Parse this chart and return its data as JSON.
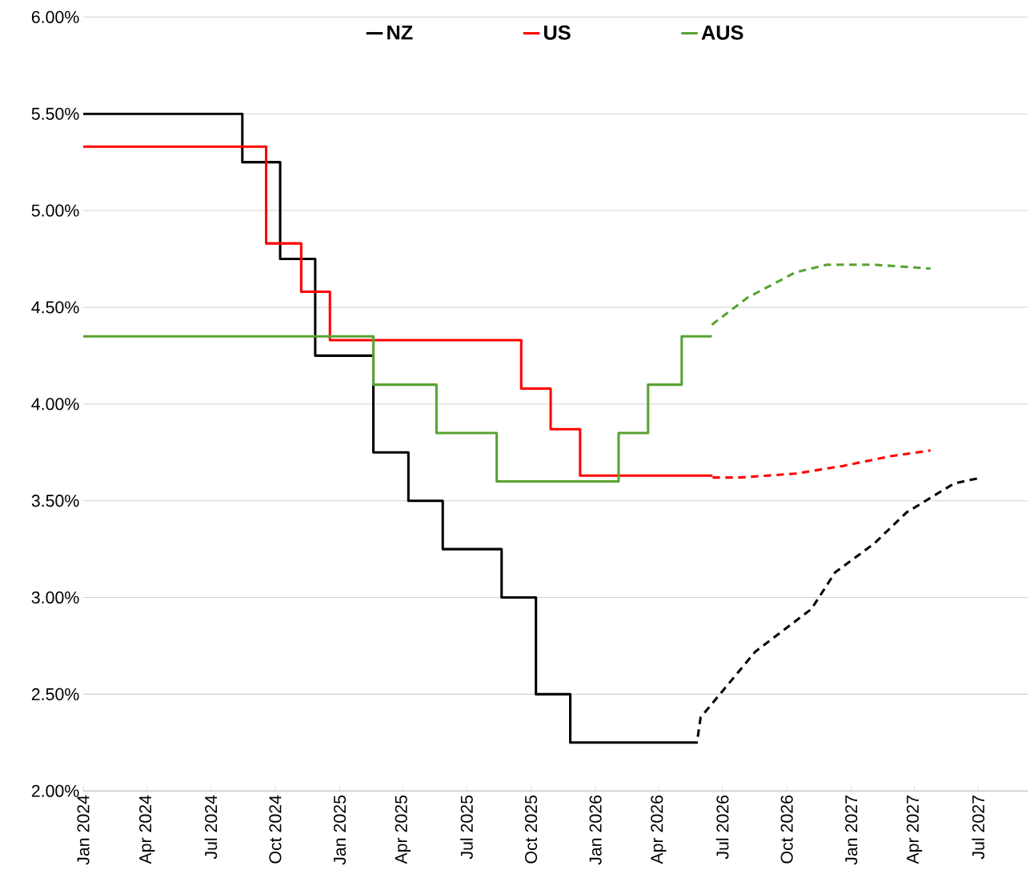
{
  "chart_data": {
    "type": "step",
    "xlim": [
      "2024-01-01",
      "2027-09-10"
    ],
    "xticks": [
      {
        "value": "2024-01-01",
        "label": "Jan 2024"
      },
      {
        "value": "2024-04-01",
        "label": "Apr 2024"
      },
      {
        "value": "2024-07-01",
        "label": "Jul 2024"
      },
      {
        "value": "2024-10-01",
        "label": "Oct 2024"
      },
      {
        "value": "2025-01-01",
        "label": "Jan 2025"
      },
      {
        "value": "2025-04-01",
        "label": "Apr 2025"
      },
      {
        "value": "2025-07-01",
        "label": "Jul 2025"
      },
      {
        "value": "2025-10-01",
        "label": "Oct 2025"
      },
      {
        "value": "2026-01-01",
        "label": "Jan 2026"
      },
      {
        "value": "2026-04-01",
        "label": "Apr 2026"
      },
      {
        "value": "2026-07-01",
        "label": "Jul 2026"
      },
      {
        "value": "2026-10-01",
        "label": "Oct 2026"
      },
      {
        "value": "2027-01-01",
        "label": "Jan 2027"
      },
      {
        "value": "2027-04-01",
        "label": "Apr 2027"
      },
      {
        "value": "2027-07-01",
        "label": "Jul 2027"
      }
    ],
    "ylim": [
      2,
      6
    ],
    "yticks": [
      {
        "value": 2,
        "label": "2.00%"
      },
      {
        "value": 2.5,
        "label": "2.50%"
      },
      {
        "value": 3,
        "label": "3.00%"
      },
      {
        "value": 3.5,
        "label": "3.50%"
      },
      {
        "value": 4,
        "label": "4.00%"
      },
      {
        "value": 4.5,
        "label": "4.50%"
      },
      {
        "value": 5,
        "label": "5.00%"
      },
      {
        "value": 5.5,
        "label": "5.50%"
      },
      {
        "value": 6,
        "label": "6.00%"
      }
    ],
    "grid": "y",
    "legend": "top",
    "series": [
      {
        "name": "NZ",
        "color": "#000000",
        "x": [
          "2024-01-01",
          "2024-08-15",
          "2024-10-08",
          "2024-11-27",
          "2025-02-18",
          "2025-04-09",
          "2025-05-28",
          "2025-08-20",
          "2025-10-08",
          "2025-11-26",
          "2026-05-27"
        ],
        "values": [
          5.5,
          5.25,
          4.75,
          4.25,
          3.75,
          3.5,
          3.25,
          3.0,
          2.5,
          2.25,
          2.25
        ]
      },
      {
        "name": "US",
        "color": "#ff0000",
        "x": [
          "2024-01-01",
          "2024-09-18",
          "2024-11-07",
          "2024-12-18",
          "2025-09-17",
          "2025-10-29",
          "2025-12-10",
          "2026-06-17"
        ],
        "values": [
          5.33,
          4.83,
          4.58,
          4.33,
          4.08,
          3.87,
          3.63,
          3.63
        ]
      },
      {
        "name": "AUS",
        "color": "#58a333",
        "x": [
          "2024-01-01",
          "2025-02-18",
          "2025-05-19",
          "2025-08-13",
          "2026-02-03",
          "2026-03-17",
          "2026-05-04",
          "2026-06-16"
        ],
        "values": [
          4.35,
          4.1,
          3.85,
          3.6,
          3.85,
          4.1,
          4.35,
          4.35
        ]
      },
      {
        "type": "line",
        "line_style": "dashed",
        "color": "#000000",
        "x": [
          "2026-05-27",
          "2026-05-31",
          "2026-08-17",
          "2026-11-05",
          "2026-12-09",
          "2027-02-03",
          "2027-03-21",
          "2027-05-28",
          "2027-07-06"
        ],
        "values": [
          2.28,
          2.38,
          2.72,
          2.94,
          3.13,
          3.28,
          3.44,
          3.59,
          3.62
        ]
      },
      {
        "type": "line",
        "line_style": "dashed",
        "color": "#ff0000",
        "x": [
          "2026-06-17",
          "2026-07-25",
          "2026-10-13",
          "2026-12-20",
          "2027-02-26",
          "2027-04-24"
        ],
        "values": [
          3.62,
          3.62,
          3.64,
          3.68,
          3.73,
          3.76
        ]
      },
      {
        "type": "line",
        "line_style": "dashed",
        "color": "#58a333",
        "x": [
          "2026-06-16",
          "2026-08-06",
          "2026-10-13",
          "2026-11-27",
          "2027-02-03",
          "2027-04-24"
        ],
        "values": [
          4.41,
          4.55,
          4.68,
          4.72,
          4.72,
          4.7
        ]
      }
    ]
  }
}
